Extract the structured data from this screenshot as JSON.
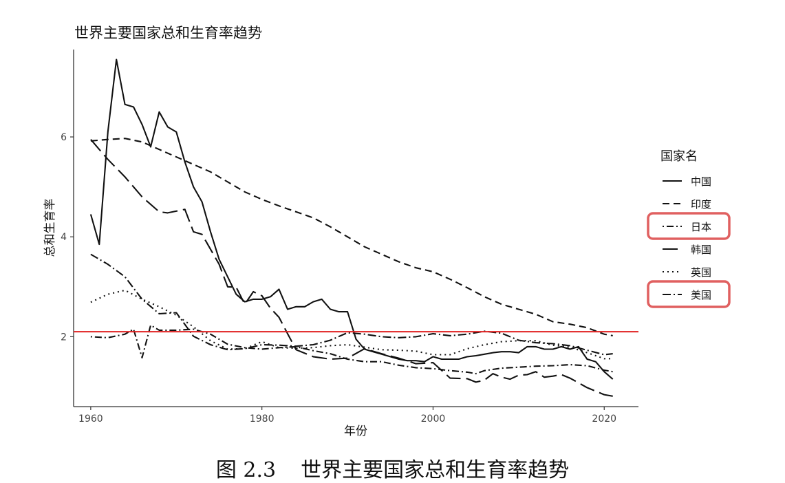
{
  "chart_data": {
    "type": "line",
    "title": "世界主要国家总和生育率趋势",
    "xlabel": "年份",
    "ylabel": "总和生育率",
    "xlim": [
      1958,
      2024
    ],
    "ylim": [
      0.6,
      7.75
    ],
    "xticks": [
      1960,
      1980,
      2000,
      2020
    ],
    "yticks": [
      2,
      4,
      6
    ],
    "grid": false,
    "legend_title": "国家名",
    "legend_position": "right",
    "reference_line": {
      "y": 2.1,
      "color": "#e02020"
    },
    "highlighted_legend_items": [
      "日本",
      "美国"
    ],
    "highlight_color": "#e06060",
    "series": [
      {
        "name": "中国",
        "dash": "",
        "x": [
          1960,
          1961,
          1962,
          1963,
          1964,
          1965,
          1966,
          1967,
          1968,
          1969,
          1970,
          1971,
          1972,
          1973,
          1974,
          1975,
          1976,
          1977,
          1978,
          1979,
          1980,
          1981,
          1982,
          1983,
          1984,
          1985,
          1986,
          1987,
          1988,
          1989,
          1990,
          1991,
          1992,
          1993,
          1994,
          1995,
          1996,
          1997,
          1998,
          1999,
          2000,
          2001,
          2002,
          2003,
          2004,
          2005,
          2006,
          2007,
          2008,
          2009,
          2010,
          2011,
          2012,
          2013,
          2014,
          2015,
          2016,
          2017,
          2018,
          2019,
          2020,
          2021
        ],
        "y": [
          4.45,
          3.85,
          6.1,
          7.55,
          6.65,
          6.6,
          6.25,
          5.8,
          6.5,
          6.2,
          6.1,
          5.5,
          5.0,
          4.7,
          4.1,
          3.55,
          3.2,
          2.85,
          2.7,
          2.75,
          2.75,
          2.8,
          2.95,
          2.55,
          2.6,
          2.6,
          2.7,
          2.75,
          2.55,
          2.5,
          2.5,
          1.95,
          1.75,
          1.7,
          1.65,
          1.6,
          1.55,
          1.52,
          1.52,
          1.5,
          1.6,
          1.55,
          1.55,
          1.55,
          1.6,
          1.62,
          1.65,
          1.68,
          1.7,
          1.7,
          1.68,
          1.8,
          1.8,
          1.75,
          1.75,
          1.8,
          1.75,
          1.8,
          1.55,
          1.5,
          1.3,
          1.15
        ]
      },
      {
        "name": "印度",
        "dash": "10 6",
        "x": [
          1960,
          1962,
          1964,
          1966,
          1968,
          1970,
          1972,
          1974,
          1976,
          1978,
          1980,
          1982,
          1984,
          1986,
          1988,
          1990,
          1992,
          1994,
          1996,
          1998,
          2000,
          2002,
          2004,
          2006,
          2008,
          2010,
          2012,
          2014,
          2016,
          2018,
          2020,
          2021
        ],
        "y": [
          5.92,
          5.95,
          5.97,
          5.9,
          5.75,
          5.6,
          5.45,
          5.3,
          5.1,
          4.9,
          4.75,
          4.62,
          4.5,
          4.38,
          4.2,
          4.0,
          3.8,
          3.65,
          3.5,
          3.38,
          3.3,
          3.15,
          2.98,
          2.8,
          2.65,
          2.55,
          2.45,
          2.3,
          2.25,
          2.18,
          2.05,
          2.02
        ]
      },
      {
        "name": "日本",
        "dash": "2 4 10 4",
        "x": [
          1960,
          1962,
          1964,
          1965,
          1966,
          1967,
          1968,
          1970,
          1972,
          1974,
          1976,
          1978,
          1980,
          1982,
          1984,
          1986,
          1988,
          1990,
          1992,
          1994,
          1996,
          1998,
          2000,
          2002,
          2004,
          2005,
          2006,
          2008,
          2010,
          2012,
          2014,
          2016,
          2018,
          2020,
          2021
        ],
        "y": [
          2.0,
          1.98,
          2.05,
          2.15,
          1.58,
          2.23,
          2.13,
          2.13,
          2.15,
          2.05,
          1.85,
          1.78,
          1.75,
          1.78,
          1.8,
          1.72,
          1.66,
          1.55,
          1.5,
          1.5,
          1.43,
          1.38,
          1.36,
          1.32,
          1.29,
          1.26,
          1.32,
          1.37,
          1.39,
          1.41,
          1.42,
          1.44,
          1.42,
          1.33,
          1.3
        ]
      },
      {
        "name": "韩国",
        "dash": "22 8",
        "x": [
          1960,
          1962,
          1964,
          1966,
          1968,
          1969,
          1971,
          1972,
          1973,
          1975,
          1976,
          1977,
          1978,
          1979,
          1980,
          1981,
          1982,
          1983,
          1984,
          1986,
          1988,
          1990,
          1992,
          1994,
          1996,
          1998,
          2000,
          2002,
          2004,
          2005,
          2006,
          2007,
          2008,
          2009,
          2010,
          2011,
          2012,
          2013,
          2014,
          2015,
          2016,
          2018,
          2020,
          2021
        ],
        "y": [
          5.95,
          5.55,
          5.2,
          4.8,
          4.5,
          4.48,
          4.55,
          4.1,
          4.05,
          3.45,
          3.0,
          2.99,
          2.65,
          2.9,
          2.82,
          2.57,
          2.39,
          2.06,
          1.74,
          1.6,
          1.55,
          1.57,
          1.76,
          1.66,
          1.57,
          1.46,
          1.48,
          1.17,
          1.16,
          1.09,
          1.13,
          1.26,
          1.19,
          1.15,
          1.23,
          1.24,
          1.3,
          1.19,
          1.21,
          1.24,
          1.17,
          0.98,
          0.84,
          0.81
        ]
      },
      {
        "name": "英国",
        "dash": "2 5",
        "x": [
          1960,
          1962,
          1964,
          1966,
          1968,
          1970,
          1972,
          1974,
          1976,
          1978,
          1980,
          1982,
          1984,
          1986,
          1988,
          1990,
          1992,
          1994,
          1996,
          1998,
          2000,
          2002,
          2004,
          2006,
          2008,
          2010,
          2012,
          2014,
          2016,
          2018,
          2020,
          2021
        ],
        "y": [
          2.69,
          2.85,
          2.93,
          2.75,
          2.6,
          2.43,
          2.2,
          1.92,
          1.75,
          1.76,
          1.9,
          1.78,
          1.77,
          1.78,
          1.82,
          1.84,
          1.79,
          1.74,
          1.73,
          1.71,
          1.64,
          1.64,
          1.76,
          1.84,
          1.9,
          1.92,
          1.92,
          1.83,
          1.79,
          1.68,
          1.56,
          1.56
        ]
      },
      {
        "name": "美国",
        "dash": "12 4 2 4",
        "x": [
          1960,
          1962,
          1964,
          1966,
          1968,
          1970,
          1972,
          1974,
          1976,
          1978,
          1980,
          1982,
          1984,
          1986,
          1988,
          1990,
          1992,
          1994,
          1996,
          1998,
          2000,
          2002,
          2004,
          2006,
          2008,
          2010,
          2012,
          2014,
          2016,
          2018,
          2020,
          2021
        ],
        "y": [
          3.65,
          3.45,
          3.2,
          2.75,
          2.46,
          2.48,
          2.01,
          1.84,
          1.74,
          1.76,
          1.84,
          1.83,
          1.81,
          1.84,
          1.93,
          2.08,
          2.05,
          2.0,
          1.98,
          2.0,
          2.06,
          2.02,
          2.05,
          2.11,
          2.07,
          1.93,
          1.88,
          1.86,
          1.82,
          1.73,
          1.64,
          1.66
        ]
      }
    ]
  },
  "caption": {
    "label": "图 2.3",
    "text": "世界主要国家总和生育率趋势"
  }
}
